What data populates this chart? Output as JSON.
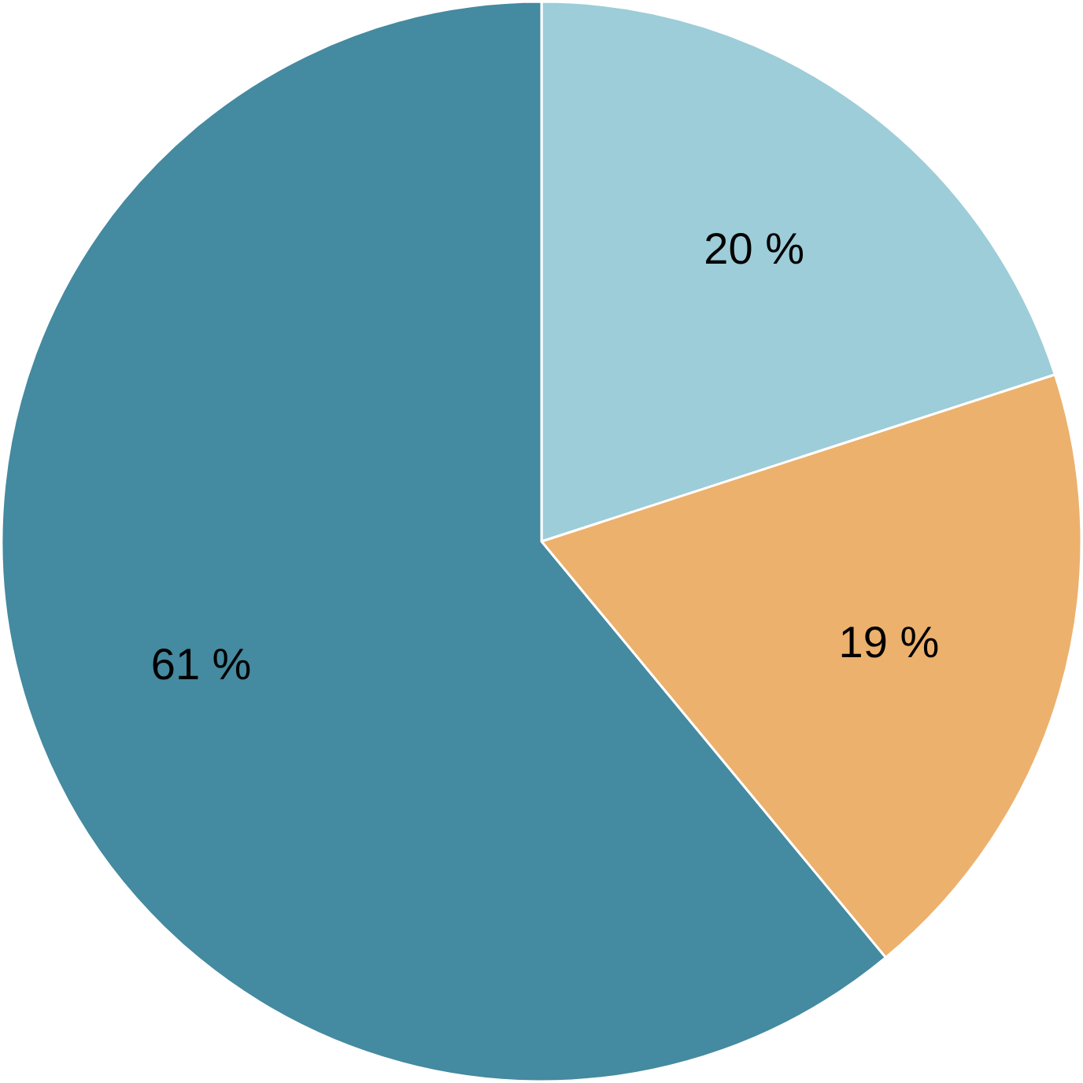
{
  "chart_data": {
    "type": "pie",
    "categories": [
      null,
      null,
      null
    ],
    "values": [
      20,
      19,
      61
    ],
    "colors": [
      "#9dcdd8",
      "#ecb16d",
      "#448aa0"
    ],
    "value_labels": [
      "20 %",
      "19 %",
      "61 %"
    ]
  }
}
